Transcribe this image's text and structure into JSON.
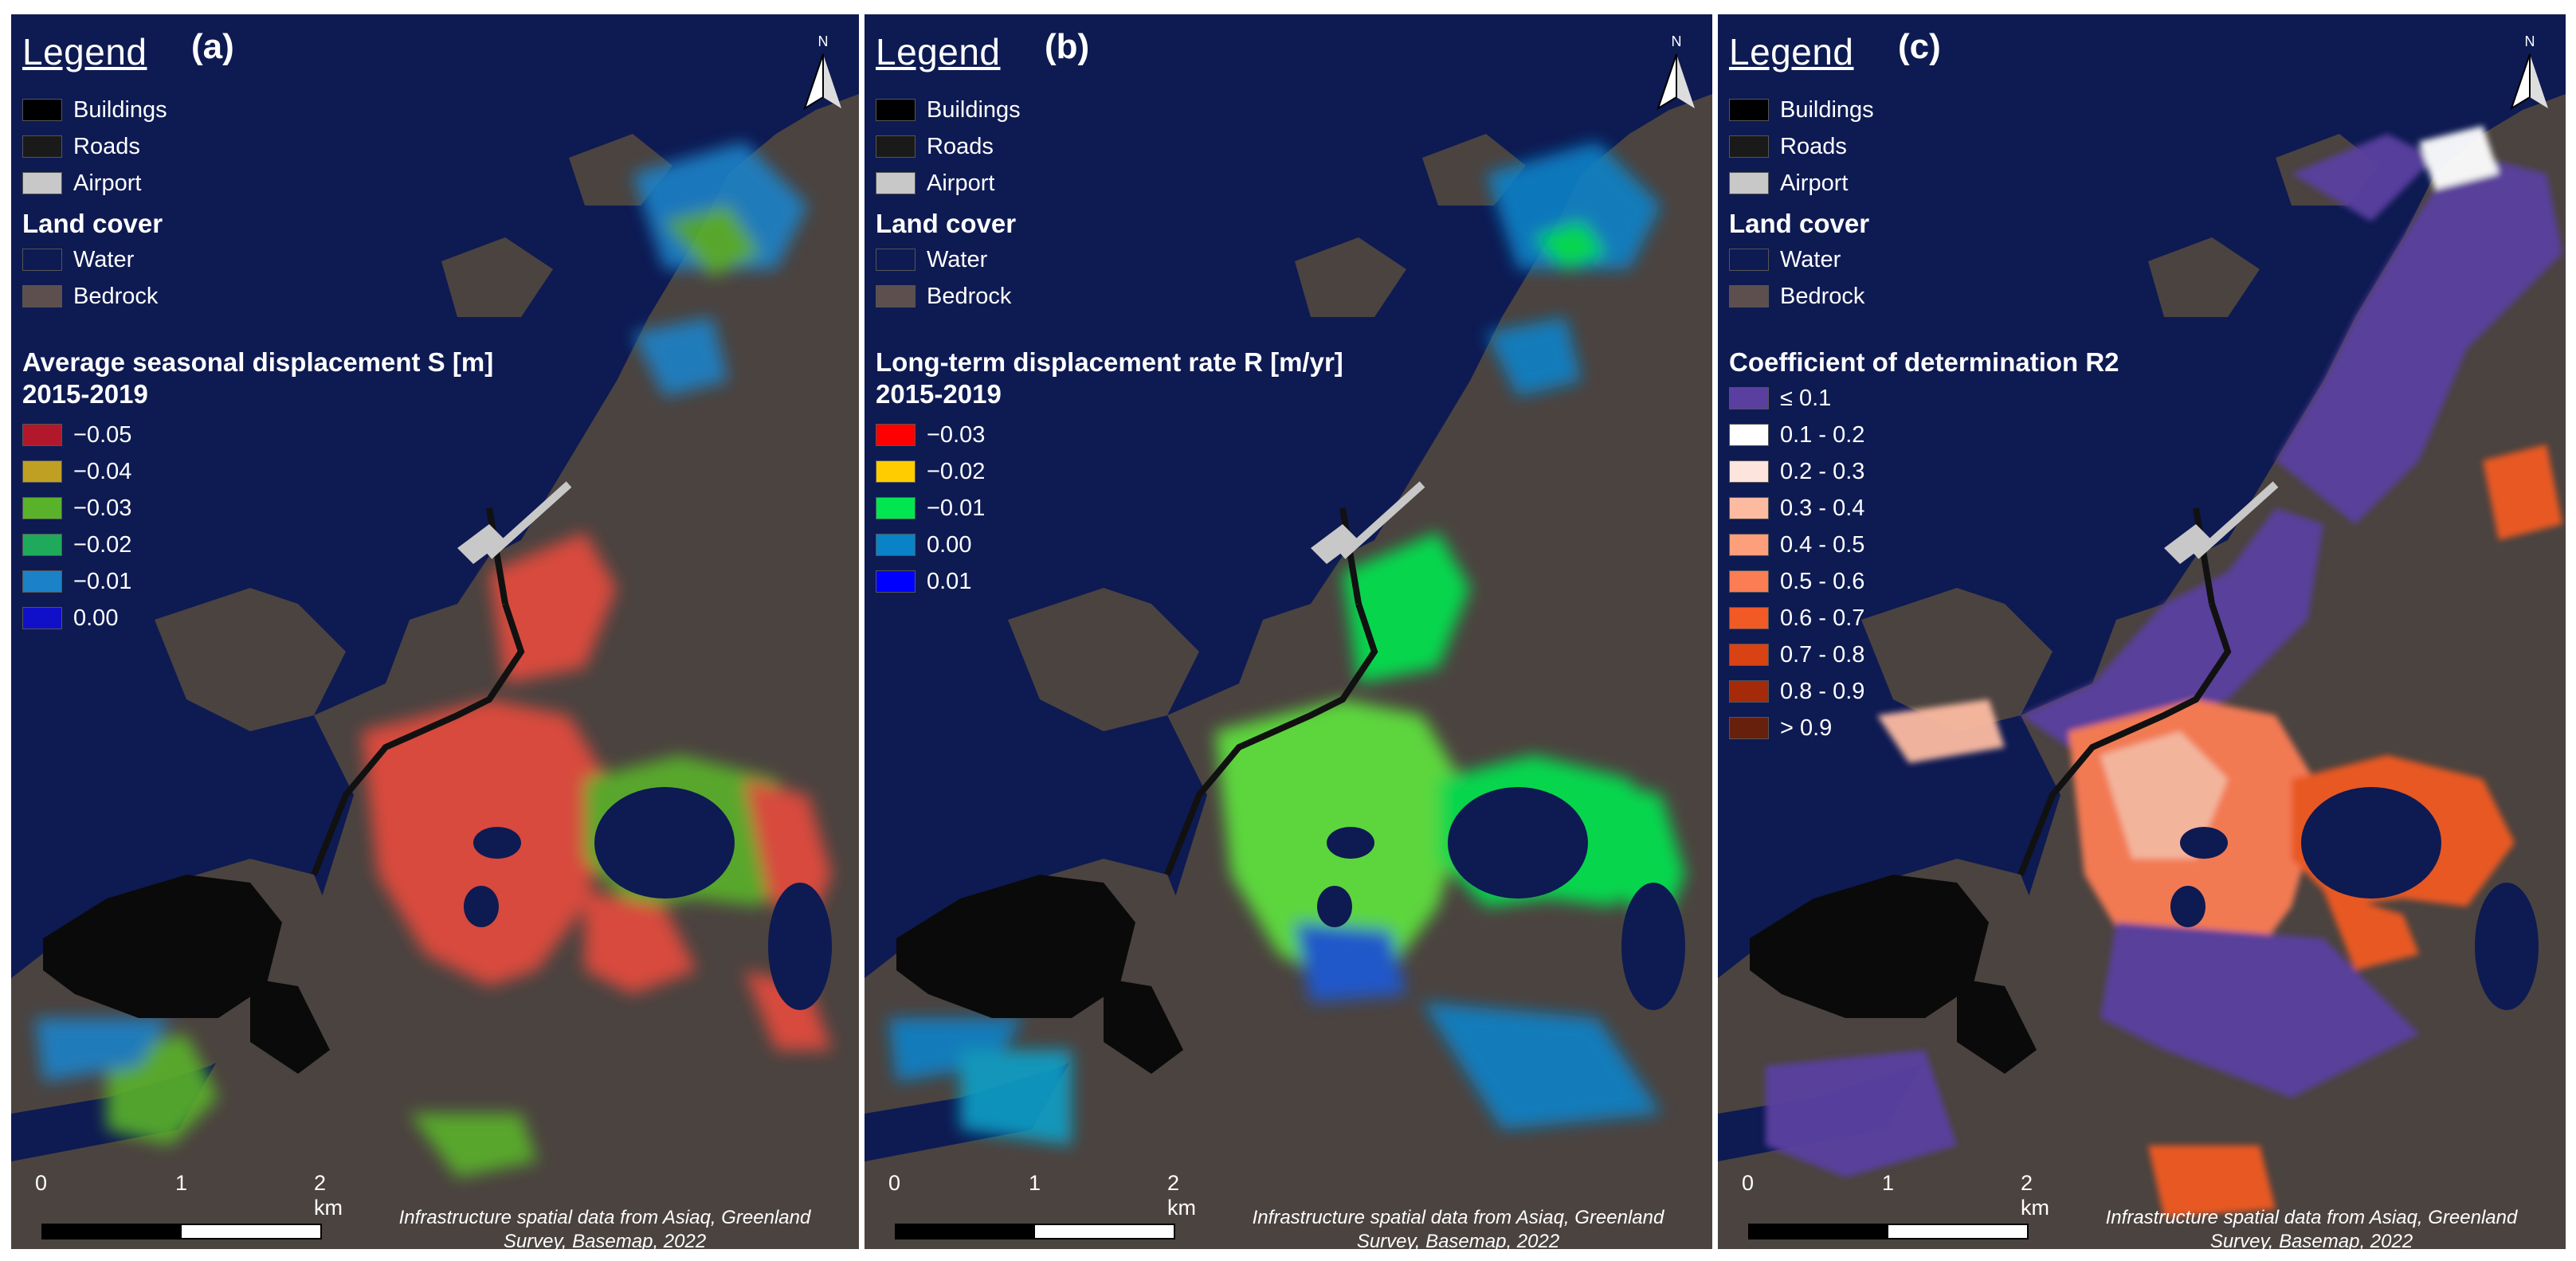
{
  "panels": [
    {
      "legend_title": "Legend",
      "letter": "(a)",
      "north": "N",
      "infra": [
        {
          "label": "Buildings",
          "color": "#000000"
        },
        {
          "label": "Roads",
          "color": "#1a1a1a"
        },
        {
          "label": "Airport",
          "color": "#c8c8c8"
        }
      ],
      "landcover_title": "Land cover",
      "landcover": [
        {
          "label": "Water",
          "color": "#0e1a52"
        },
        {
          "label": "Bedrock",
          "color": "#5c4f4d"
        }
      ],
      "var_title": "Average seasonal displacement S [m]",
      "var_period": "2015-2019",
      "classes": [
        {
          "label": "−0.05",
          "color": "#b2182b"
        },
        {
          "label": "−0.04",
          "color": "#bfa022"
        },
        {
          "label": "−0.03",
          "color": "#5ab22a"
        },
        {
          "label": "−0.02",
          "color": "#1faa5b"
        },
        {
          "label": "−0.01",
          "color": "#1b82c8"
        },
        {
          "label": "0.00",
          "color": "#1010c8"
        }
      ],
      "scale": {
        "l0": "0",
        "l1": "1",
        "l2": "2 km"
      },
      "credit": "Infrastructure spatial data from Asiaq, Greenland Survey, Basemap, 2022"
    },
    {
      "legend_title": "Legend",
      "letter": "(b)",
      "north": "N",
      "infra": [
        {
          "label": "Buildings",
          "color": "#000000"
        },
        {
          "label": "Roads",
          "color": "#1a1a1a"
        },
        {
          "label": "Airport",
          "color": "#c8c8c8"
        }
      ],
      "landcover_title": "Land cover",
      "landcover": [
        {
          "label": "Water",
          "color": "#0e1a52"
        },
        {
          "label": "Bedrock",
          "color": "#5c4f4d"
        }
      ],
      "var_title": "Long-term displacement rate R [m/yr]",
      "var_period": "2015-2019",
      "classes": [
        {
          "label": "−0.03",
          "color": "#ff0000"
        },
        {
          "label": "−0.02",
          "color": "#ffcc00"
        },
        {
          "label": "−0.01",
          "color": "#00e650"
        },
        {
          "label": "0.00",
          "color": "#0a82c8"
        },
        {
          "label": "0.01",
          "color": "#0000ff"
        }
      ],
      "scale": {
        "l0": "0",
        "l1": "1",
        "l2": "2 km"
      },
      "credit": "Infrastructure spatial data from Asiaq, Greenland Survey, Basemap, 2022"
    },
    {
      "legend_title": "Legend",
      "letter": "(c)",
      "north": "N",
      "infra": [
        {
          "label": "Buildings",
          "color": "#000000"
        },
        {
          "label": "Roads",
          "color": "#1a1a1a"
        },
        {
          "label": "Airport",
          "color": "#c8c8c8"
        }
      ],
      "landcover_title": "Land cover",
      "landcover": [
        {
          "label": "Water",
          "color": "#0e1a52"
        },
        {
          "label": "Bedrock",
          "color": "#5c4f4d"
        }
      ],
      "var_title": "Coefficient of determination R2",
      "var_period": "",
      "classes": [
        {
          "label": "≤ 0.1",
          "color": "#5a3fa0"
        },
        {
          "label": "0.1 - 0.2",
          "color": "#ffffff"
        },
        {
          "label": "0.2 - 0.3",
          "color": "#fde4dc"
        },
        {
          "label": "0.3 - 0.4",
          "color": "#fcbba1"
        },
        {
          "label": "0.4 - 0.5",
          "color": "#fc9f7a"
        },
        {
          "label": "0.5 - 0.6",
          "color": "#fb7d54"
        },
        {
          "label": "0.6 - 0.7",
          "color": "#f15a24"
        },
        {
          "label": "0.7 - 0.8",
          "color": "#d94212"
        },
        {
          "label": "0.8 - 0.9",
          "color": "#a52a0a"
        },
        {
          "label": "> 0.9",
          "color": "#67200b"
        }
      ],
      "scale": {
        "l0": "0",
        "l1": "1",
        "l2": "2 km"
      },
      "credit": "Infrastructure spatial data from Asiaq, Greenland Survey, Basemap, 2022"
    }
  ]
}
